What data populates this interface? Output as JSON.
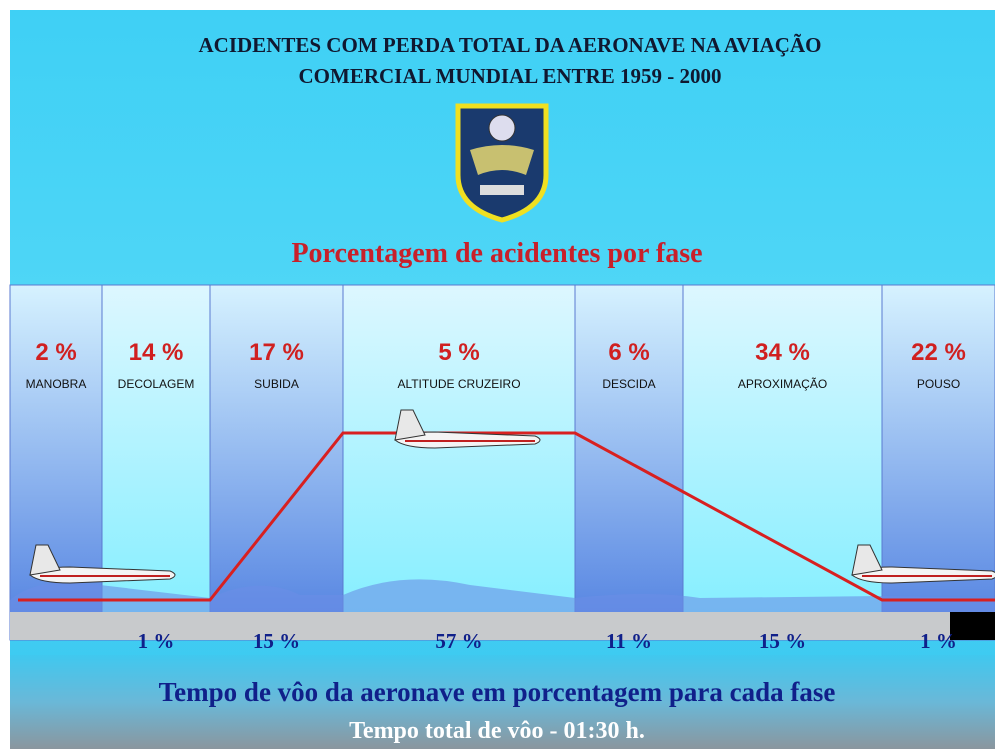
{
  "header": {
    "title_lines": [
      "ACIDENTES COM PERDA TOTAL DA AERONAVE NA AVIAÇÃO",
      "COMERCIAL MUNDIAL ENTRE 1959 - 2000"
    ],
    "subtitle": "Porcentagem de acidentes por fase"
  },
  "phases": [
    {
      "accidents": "2 %",
      "name": "MANOBRA"
    },
    {
      "accidents": "14 %",
      "name": "DECOLAGEM",
      "time": "1 %"
    },
    {
      "accidents": "17 %",
      "name": "SUBIDA",
      "time": "15 %"
    },
    {
      "accidents": "5 %",
      "name": "ALTITUDE CRUZEIRO",
      "time": "57 %"
    },
    {
      "accidents": "6 %",
      "name": "DESCIDA",
      "time": "11 %"
    },
    {
      "accidents": "34 %",
      "name": "APROXIMAÇÃO",
      "time": "15 %"
    },
    {
      "accidents": "22 %",
      "name": "POUSO",
      "time": "1 %"
    }
  ],
  "footer": {
    "caption": "Tempo de vôo da aeronave em porcentagem para cada fase",
    "total": "Tempo total de vôo -  01:30 h."
  }
}
